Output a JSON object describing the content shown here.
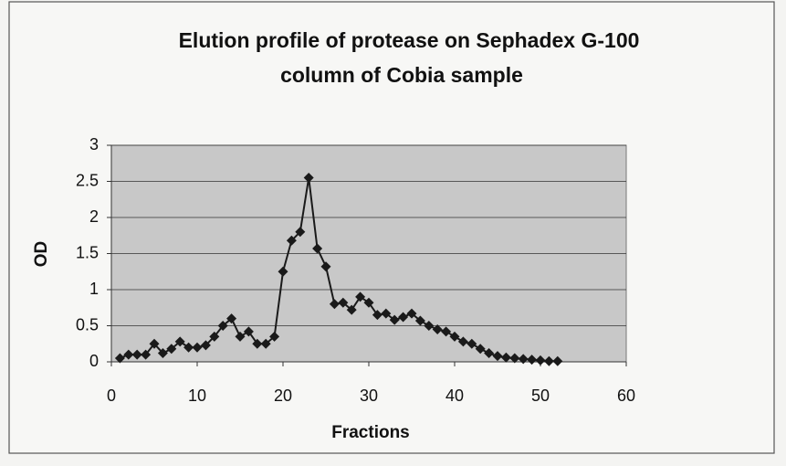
{
  "chart_data": {
    "type": "line",
    "title": [
      "Elution profile of protease on Sephadex G-100",
      "column of Cobia sample"
    ],
    "x_label": "Fractions",
    "y_label": "OD",
    "series": [
      {
        "name": "OD",
        "color": "#1a1a1a",
        "marker": "diamond",
        "x": [
          1,
          2,
          3,
          4,
          5,
          6,
          7,
          8,
          9,
          10,
          11,
          12,
          13,
          14,
          15,
          16,
          17,
          18,
          19,
          20,
          21,
          22,
          23,
          24,
          25,
          26,
          27,
          28,
          29,
          30,
          31,
          32,
          33,
          34,
          35,
          36,
          37,
          38,
          39,
          40,
          41,
          42,
          43,
          44,
          45,
          46,
          47,
          48,
          49,
          50,
          51,
          52
        ],
        "values": [
          0.05,
          0.1,
          0.1,
          0.1,
          0.25,
          0.12,
          0.18,
          0.28,
          0.2,
          0.2,
          0.23,
          0.35,
          0.5,
          0.6,
          0.35,
          0.42,
          0.25,
          0.25,
          0.35,
          1.25,
          1.68,
          1.8,
          2.55,
          1.57,
          1.32,
          0.8,
          0.82,
          0.72,
          0.9,
          0.82,
          0.65,
          0.67,
          0.58,
          0.62,
          0.67,
          0.57,
          0.5,
          0.45,
          0.42,
          0.35,
          0.28,
          0.25,
          0.18,
          0.12,
          0.08,
          0.06,
          0.05,
          0.04,
          0.03,
          0.02,
          0.01,
          0.01
        ]
      }
    ],
    "xlim": [
      0,
      60
    ],
    "xticks": [
      0,
      10,
      20,
      30,
      40,
      50,
      60
    ],
    "ylim": [
      0,
      3
    ],
    "yticks": [
      0,
      0.5,
      1,
      1.5,
      2,
      2.5,
      3
    ],
    "grid": true,
    "plot_background": "#c8c8c8"
  }
}
